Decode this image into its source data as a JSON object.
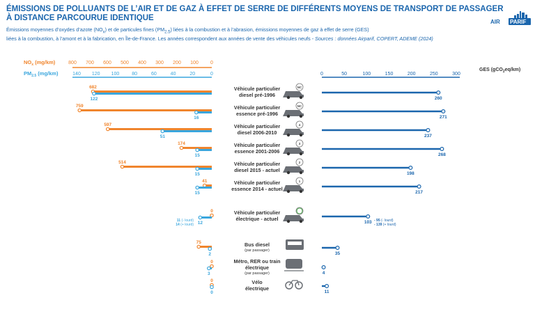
{
  "title_line1": "ÉMISSIONS DE POLLUANTS DE L’AIR ET DE GAZ À EFFET DE SERRE DE DIFFÉRENTS MOYENS DE TRANSPORT DE PASSAGER",
  "title_line2": "À DISTANCE PARCOURUE IDENTIQUE",
  "subtitle_a": "Émissions moyennes d’oxydes d’azote (NO",
  "subtitle_a_sub": "x",
  "subtitle_b": ") et de particules fines (PM",
  "subtitle_b_sub": "2.5",
  "subtitle_c": ") liées à la combustion et à l’abrasion, émissions moyennes de gaz à effet de serre (GES)",
  "subtitle_line2": "liées à la combustion, à l’amont et à la fabrication, en Île-de-France. Les années correspondent  aux années de vente des véhicules neufs",
  "subtitle_source": " - Sources : données Airparif, COPERT, ADEME (2024)",
  "logo_text": "AIRPARIF",
  "colors": {
    "nox": "#f0852d",
    "pm": "#3aa6dd",
    "ges": "#1b66ad",
    "title": "#1b66ad",
    "icon": "#555555"
  },
  "chart_data": {
    "type": "bar",
    "categories": [
      {
        "line1": "Véhicule particulier",
        "line2": "diesel pré-1996",
        "sub": "",
        "icon": "car-icon",
        "badge": "NC"
      },
      {
        "line1": "Véhicule particulier",
        "line2": "essence pré-1996",
        "sub": "",
        "icon": "car-icon",
        "badge": "NC"
      },
      {
        "line1": "Véhicule particulier",
        "line2": "diesel 2006-2010",
        "sub": "",
        "icon": "car-icon",
        "badge": "4"
      },
      {
        "line1": "Véhicule particulier",
        "line2": "essence 2001-2006",
        "sub": "",
        "icon": "car-icon",
        "badge": "3"
      },
      {
        "line1": "Véhicule particulier",
        "line2": "diesel 2015 - actuel",
        "sub": "",
        "icon": "car-icon",
        "badge": "2"
      },
      {
        "line1": "Véhicule particulier",
        "line2": "essence 2014 - actuel",
        "sub": "",
        "icon": "car-icon",
        "badge": "1"
      },
      {
        "line1": "Véhicule particulier",
        "line2": "électrique - actuel",
        "sub": "",
        "icon": "electric-car-icon",
        "badge": ""
      },
      {
        "line1": "Bus diesel",
        "line2": "",
        "sub": "(par passager)",
        "icon": "bus-icon",
        "badge": ""
      },
      {
        "line1": "Métro, RER ou train",
        "line2": "électrique",
        "sub": "(par passager)",
        "icon": "train-icon",
        "badge": ""
      },
      {
        "line1": "Vélo",
        "line2": "électrique",
        "sub": "",
        "icon": "bike-icon",
        "badge": ""
      }
    ],
    "series": [
      {
        "name": "NOx (mg/km)",
        "values": [
          682,
          759,
          597,
          174,
          514,
          41,
          0,
          75,
          0,
          0
        ]
      },
      {
        "name": "PM2.5 (mg/km)",
        "values": [
          122,
          16,
          51,
          15,
          15,
          15,
          12,
          2,
          3,
          0
        ]
      },
      {
        "name": "GES (gCO2eq/km)",
        "values": [
          260,
          271,
          237,
          268,
          198,
          217,
          103,
          35,
          4,
          11
        ]
      }
    ],
    "nox_label_text": [
      682,
      759,
      597,
      174,
      514,
      41,
      0,
      75,
      0,
      0
    ],
    "pm_label_text": [
      122,
      16,
      51,
      15,
      15,
      15,
      12,
      2,
      3,
      0
    ],
    "ges_label_text": [
      260,
      271,
      237,
      268,
      198,
      217,
      103,
      35,
      4,
      11
    ],
    "nox_axis": {
      "label": "NO",
      "label_sub": "x",
      "unit": " (mg/km)",
      "ticks": [
        800,
        700,
        600,
        500,
        400,
        300,
        200,
        100,
        0
      ],
      "range": [
        0,
        800
      ],
      "reversed": true
    },
    "pm_axis": {
      "label": "PM",
      "label_sub": "2.5",
      "unit": " (mg/km)",
      "ticks": [
        140,
        120,
        100,
        80,
        60,
        40,
        20,
        0
      ],
      "range": [
        0,
        140
      ],
      "reversed": true
    },
    "ges_axis": {
      "label": "GES (gCO",
      "label_sub": "2",
      "unit": "eq/km)",
      "ticks": [
        0,
        50,
        100,
        150,
        200,
        250,
        300
      ],
      "range": [
        0,
        300
      ]
    },
    "electric_notes": {
      "pm_left": [
        {
          "value": "11",
          "note": "(- lourd)"
        },
        {
          "value": "14",
          "note": "(+ lourd)"
        }
      ],
      "ges_right": [
        {
          "value": "95",
          "note": "(- lourd)"
        },
        {
          "value": "139",
          "note": "(+ lourd)"
        }
      ]
    },
    "grid": false
  }
}
